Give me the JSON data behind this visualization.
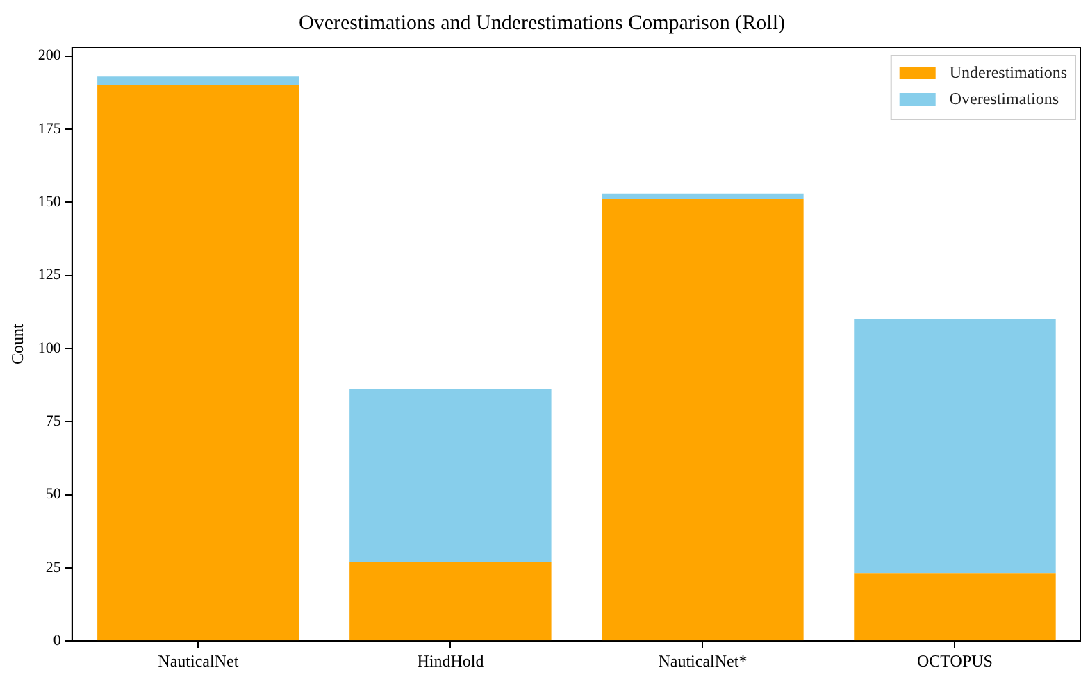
{
  "chart_data": {
    "type": "bar",
    "title": "Overestimations and Underestimations Comparison (Roll)",
    "ylabel": "Count",
    "categories": [
      "NauticalNet",
      "HindHold",
      "NauticalNet*",
      "OCTOPUS"
    ],
    "stacked": true,
    "series": [
      {
        "name": "Underestimations",
        "color": "#ffa500",
        "values": [
          190,
          27,
          151,
          23
        ]
      },
      {
        "name": "Overestimations",
        "color": "#87ceeb",
        "values": [
          3,
          59,
          2,
          87
        ]
      }
    ],
    "ylim": [
      0,
      203
    ],
    "yticks": [
      0,
      25,
      50,
      75,
      100,
      125,
      150,
      175,
      200
    ],
    "grid": false,
    "legend": "top right"
  }
}
